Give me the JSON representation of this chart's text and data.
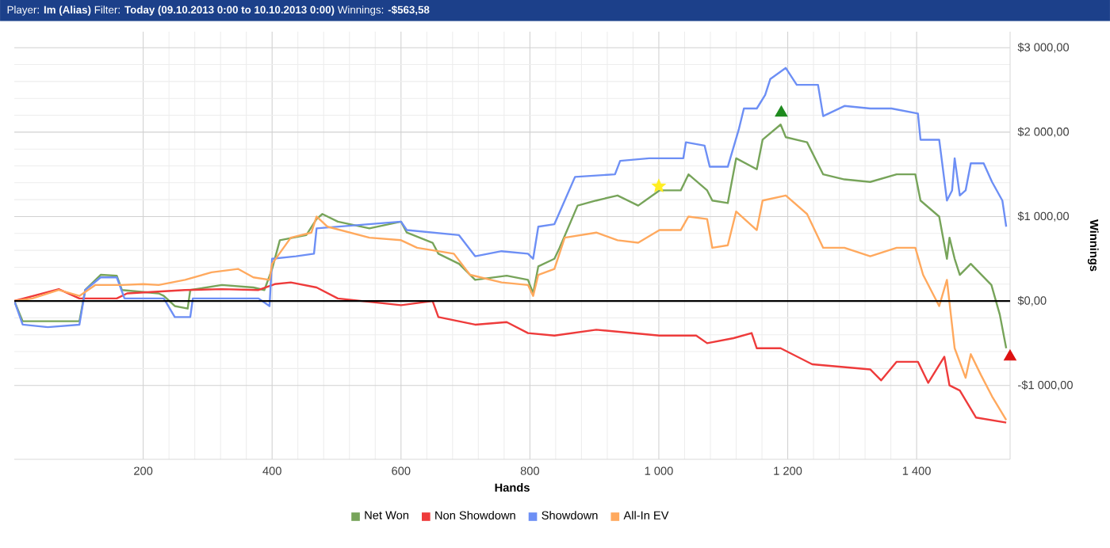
{
  "chart_data": {
    "type": "line",
    "title": "Player: **Im (Alias)** Filter: **Today (09.10.2013 0:00 to 10.10.2013 0:00)** Winnings: **-$563,58**",
    "xlabel": "Hands",
    "ylabel": "Winnings",
    "xlim": [
      0,
      1545
    ],
    "ylim": [
      -1875,
      3190
    ],
    "xticks": [
      200,
      400,
      600,
      800,
      {
        "value": 1000,
        "label": "1 000"
      },
      {
        "value": 1200,
        "label": "1 200"
      },
      {
        "value": 1400,
        "label": "1 400"
      }
    ],
    "yticks": [
      {
        "value": -1000,
        "label": "-$1 000,00"
      },
      {
        "value": 0,
        "label": "$0,00"
      },
      {
        "value": 1000,
        "label": "$1 000,00"
      },
      {
        "value": 2000,
        "label": "$2 000,00"
      },
      {
        "value": 3000,
        "label": "$3 000,00"
      }
    ],
    "grid": true,
    "legend": "bottom",
    "marker": "none",
    "line_style": "solid",
    "ref_lines": [
      {
        "axis": "y",
        "value": 0,
        "color": "#000000"
      }
    ],
    "series": [
      {
        "name": "Net Won",
        "color": "#77a45a",
        "x": [
          0,
          13,
          101,
          110,
          134,
          159,
          167,
          224,
          232,
          249,
          269,
          273,
          322,
          371,
          388,
          400,
          412,
          453,
          469,
          478,
          502,
          551,
          600,
          609,
          649,
          658,
          690,
          715,
          764,
          797,
          805,
          813,
          838,
          846,
          874,
          903,
          936,
          968,
          1001,
          1034,
          1046,
          1075,
          1083,
          1107,
          1120,
          1152,
          1161,
          1189,
          1197,
          1230,
          1255,
          1288,
          1328,
          1369,
          1398,
          1406,
          1435,
          1447,
          1451,
          1459,
          1467,
          1484,
          1516,
          1529,
          1539
        ],
        "values": [
          0,
          -240,
          -240,
          130,
          310,
          300,
          130,
          90,
          60,
          -60,
          -90,
          130,
          190,
          160,
          130,
          380,
          720,
          780,
          970,
          1030,
          940,
          860,
          940,
          810,
          690,
          560,
          440,
          250,
          300,
          250,
          90,
          410,
          500,
          630,
          1130,
          1190,
          1250,
          1130,
          1310,
          1310,
          1500,
          1310,
          1190,
          1160,
          1690,
          1560,
          1910,
          2090,
          1940,
          1880,
          1500,
          1440,
          1410,
          1500,
          1500,
          1190,
          1000,
          500,
          750,
          500,
          310,
          440,
          190,
          -160,
          -560
        ]
      },
      {
        "name": "Non Showdown",
        "color": "#ee3b3b",
        "x": [
          0,
          69,
          101,
          159,
          175,
          265,
          322,
          379,
          404,
          429,
          469,
          502,
          551,
          600,
          649,
          658,
          715,
          764,
          797,
          838,
          903,
          1001,
          1058,
          1075,
          1116,
          1144,
          1152,
          1189,
          1238,
          1328,
          1345,
          1369,
          1402,
          1418,
          1443,
          1451,
          1467,
          1492,
          1539
        ],
        "values": [
          0,
          140,
          30,
          30,
          90,
          130,
          140,
          130,
          200,
          220,
          160,
          30,
          -10,
          -50,
          0,
          -190,
          -280,
          -250,
          -380,
          -410,
          -340,
          -410,
          -410,
          -500,
          -440,
          -380,
          -560,
          -560,
          -750,
          -810,
          -940,
          -720,
          -720,
          -970,
          -660,
          -1000,
          -1060,
          -1380,
          -1440
        ]
      },
      {
        "name": "Showdown",
        "color": "#6d8ff5",
        "x": [
          0,
          13,
          52,
          101,
          110,
          134,
          159,
          171,
          232,
          249,
          273,
          277,
          379,
          396,
          400,
          437,
          465,
          469,
          600,
          609,
          690,
          715,
          756,
          797,
          805,
          813,
          838,
          870,
          932,
          940,
          985,
          1038,
          1042,
          1071,
          1079,
          1107,
          1124,
          1132,
          1152,
          1165,
          1173,
          1197,
          1214,
          1247,
          1255,
          1288,
          1328,
          1361,
          1402,
          1406,
          1435,
          1447,
          1455,
          1459,
          1467,
          1476,
          1484,
          1504,
          1517,
          1533,
          1539
        ],
        "values": [
          0,
          -280,
          -310,
          -280,
          130,
          280,
          280,
          30,
          30,
          -190,
          -190,
          30,
          30,
          -60,
          500,
          530,
          560,
          860,
          940,
          840,
          780,
          530,
          590,
          560,
          500,
          880,
          910,
          1470,
          1500,
          1660,
          1690,
          1690,
          1880,
          1840,
          1590,
          1590,
          2030,
          2280,
          2280,
          2440,
          2630,
          2760,
          2560,
          2560,
          2190,
          2310,
          2280,
          2280,
          2220,
          1910,
          1910,
          1190,
          1310,
          1690,
          1250,
          1310,
          1630,
          1630,
          1410,
          1190,
          880
        ]
      },
      {
        "name": "All-In EV",
        "color": "#ffa95e",
        "x": [
          0,
          28,
          69,
          101,
          126,
          167,
          200,
          224,
          265,
          306,
          347,
          371,
          396,
          400,
          429,
          461,
          469,
          486,
          551,
          600,
          625,
          682,
          707,
          756,
          797,
          805,
          813,
          838,
          854,
          903,
          936,
          968,
          1001,
          1034,
          1046,
          1075,
          1083,
          1107,
          1120,
          1152,
          1161,
          1197,
          1230,
          1255,
          1288,
          1328,
          1369,
          1398,
          1410,
          1435,
          1447,
          1459,
          1476,
          1484,
          1500,
          1517,
          1539
        ],
        "values": [
          0,
          30,
          130,
          60,
          190,
          190,
          200,
          190,
          250,
          340,
          380,
          280,
          250,
          440,
          750,
          810,
          1000,
          880,
          750,
          720,
          630,
          560,
          310,
          220,
          190,
          60,
          310,
          380,
          750,
          810,
          720,
          690,
          840,
          840,
          1000,
          970,
          630,
          660,
          1060,
          840,
          1190,
          1250,
          1030,
          630,
          630,
          530,
          630,
          630,
          310,
          -60,
          250,
          -560,
          -910,
          -630,
          -880,
          -1130,
          -1410
        ]
      },
      {
        "type": "scatter",
        "marker": "star",
        "color": "#ffee22",
        "x": [
          1000
        ],
        "values": [
          1360
        ]
      },
      {
        "type": "scatter",
        "marker": "triangle",
        "color": "#1e8a1e",
        "x": [
          1190
        ],
        "values": [
          2230
        ]
      },
      {
        "type": "scatter",
        "marker": "triangle",
        "color": "#dd1111",
        "x": [
          1545
        ],
        "values": [
          -660
        ]
      }
    ]
  }
}
